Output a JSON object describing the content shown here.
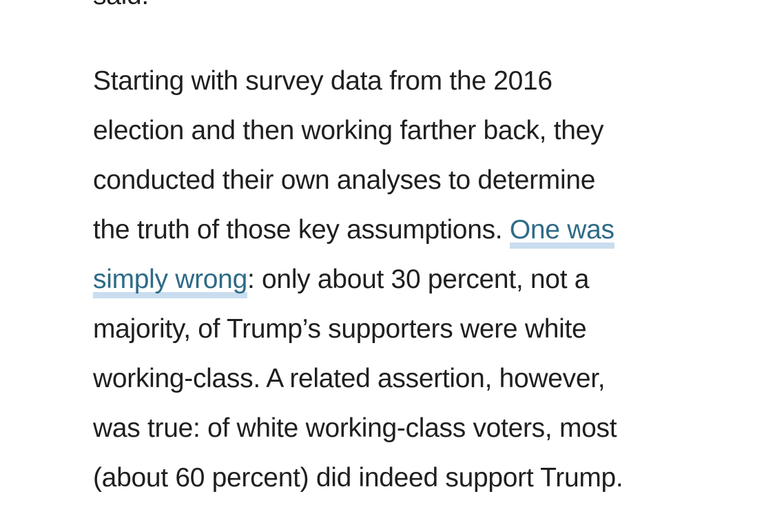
{
  "article": {
    "previous_paragraph_tail": "said.",
    "lines": [
      "Starting with survey data from the 2016",
      "election and then working farther back, they",
      "conducted their own analyses to determine",
      "the truth of those key assumptions. ",
      ": only about 30 percent, not a",
      "majority, of Trump’s supporters were white",
      "working-class. A related assertion, however,",
      "was true: of white working-class voters, most",
      "(about 60 percent) did indeed support Trump."
    ],
    "link": {
      "part1": "One was",
      "part2": "simply wrong"
    }
  },
  "colors": {
    "text": "#1f1f1f",
    "link": "#2e6b87",
    "link_underline": "#c9ddef",
    "background": "#ffffff"
  }
}
